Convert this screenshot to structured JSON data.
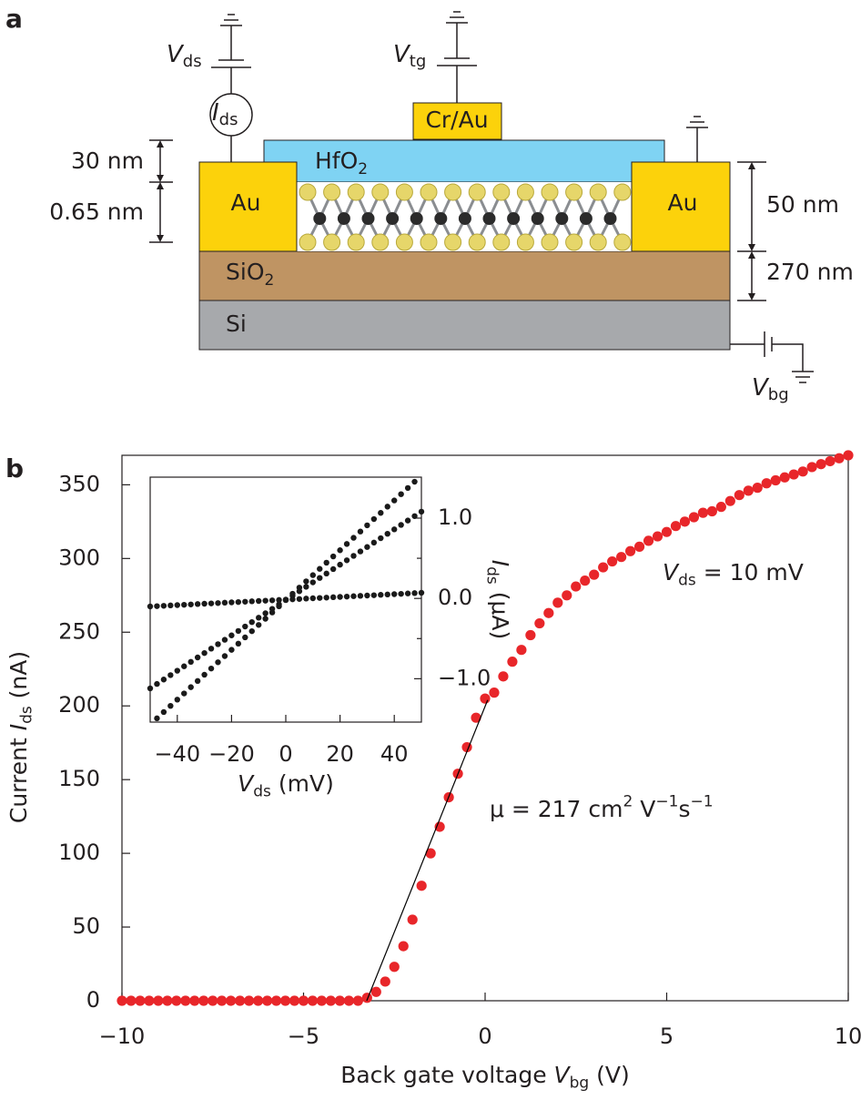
{
  "panel_a": {
    "label": "a",
    "vds": {
      "symbol": "V",
      "sub": "ds"
    },
    "ids": {
      "symbol": "I",
      "sub": "ds"
    },
    "vtg": {
      "symbol": "V",
      "sub": "tg"
    },
    "vbg": {
      "symbol": "V",
      "sub": "bg"
    },
    "layers": {
      "top_gate": "Cr/Au",
      "dielectric": {
        "text": "HfO",
        "sub": "2"
      },
      "contact_left": "Au",
      "contact_right": "Au",
      "oxide": {
        "text": "SiO",
        "sub": "2"
      },
      "substrate": "Si"
    },
    "dimensions": [
      "30 nm",
      "0.65 nm",
      "50 nm",
      "270 nm"
    ]
  },
  "chart_data": [
    {
      "type": "scatter",
      "panel_label": "b",
      "x": [
        -10,
        -9.75,
        -9.5,
        -9.25,
        -9,
        -8.75,
        -8.5,
        -8.25,
        -8,
        -7.75,
        -7.5,
        -7.25,
        -7,
        -6.75,
        -6.5,
        -6.25,
        -6,
        -5.75,
        -5.5,
        -5.25,
        -5,
        -4.75,
        -4.5,
        -4.25,
        -4,
        -3.75,
        -3.5,
        -3.25,
        -3,
        -2.75,
        -2.5,
        -2.25,
        -2,
        -1.75,
        -1.5,
        -1.25,
        -1,
        -0.75,
        -0.5,
        -0.25,
        0,
        0.25,
        0.5,
        0.75,
        1,
        1.25,
        1.5,
        1.75,
        2,
        2.25,
        2.5,
        2.75,
        3,
        3.25,
        3.5,
        3.75,
        4,
        4.25,
        4.5,
        4.75,
        5,
        5.25,
        5.5,
        5.75,
        6,
        6.25,
        6.5,
        6.75,
        7,
        7.25,
        7.5,
        7.75,
        8,
        8.25,
        8.5,
        8.75,
        9,
        9.25,
        9.5,
        9.75,
        10
      ],
      "values": [
        0,
        0,
        0,
        0,
        0,
        0,
        0,
        0,
        0,
        0,
        0,
        0,
        0,
        0,
        0,
        0,
        0,
        0,
        0,
        0,
        0,
        0,
        0,
        0,
        0,
        0,
        0,
        2,
        6,
        13,
        23,
        37,
        55,
        78,
        100,
        118,
        138,
        154,
        172,
        192,
        205,
        209,
        220,
        230,
        238,
        248,
        256,
        263,
        270,
        275,
        281,
        285,
        289,
        294,
        298,
        301,
        305,
        308,
        312,
        315,
        318,
        322,
        325,
        328,
        331,
        332,
        335,
        339,
        343,
        346,
        348,
        351,
        353,
        355,
        357,
        359,
        362,
        364,
        366,
        368,
        370
      ],
      "color": "#e8262a",
      "xlim": [
        -10,
        10
      ],
      "ylim": [
        0,
        370
      ],
      "xticks": [
        {
          "value": -10,
          "label": "−10"
        },
        {
          "value": -5,
          "label": "−5"
        },
        0,
        5,
        10
      ],
      "yticks": [
        0,
        50,
        100,
        150,
        200,
        250,
        300,
        350
      ],
      "xlabel": {
        "text": "Back gate voltage ",
        "symbol": "V",
        "sub": "bg",
        "unit": " (V)"
      },
      "ylabel": {
        "text": "Current ",
        "symbol": "I",
        "sub": "ds",
        "unit": " (nA)"
      },
      "fit_line": {
        "x": [
          -3.26,
          0.07
        ],
        "values": [
          0,
          204
        ],
        "color": "#000000"
      },
      "annotations": [
        {
          "symbol": "V",
          "sub": "ds",
          "text": " = 10 mV"
        },
        {
          "parts": [
            "μ = 217 cm",
            "2",
            " V",
            "−1",
            "s",
            "−1"
          ]
        }
      ]
    },
    {
      "type": "scatter",
      "x": [
        -50,
        -47.5,
        -45,
        -42.5,
        -40,
        -37.5,
        -35,
        -32.5,
        -30,
        -27.5,
        -25,
        -22.5,
        -20,
        -17.5,
        -15,
        -12.5,
        -10,
        -7.5,
        -5,
        -2.5,
        0,
        2.5,
        5,
        7.5,
        10,
        12.5,
        15,
        17.5,
        20,
        22.5,
        25,
        27.5,
        30,
        32.5,
        35,
        37.5,
        40,
        42.5,
        45,
        47.5,
        50
      ],
      "series": [
        {
          "color": "#1a1a1a",
          "axis": "y2",
          "values": [
            -0.1,
            -0.096,
            -0.092,
            -0.087,
            -0.083,
            -0.079,
            -0.075,
            -0.07,
            -0.066,
            -0.062,
            -0.058,
            -0.053,
            -0.049,
            -0.045,
            -0.041,
            -0.036,
            -0.032,
            -0.028,
            -0.024,
            -0.019,
            -0.015,
            -0.011,
            -0.007,
            -0.002,
            0.002,
            0.006,
            0.01,
            0.015,
            0.019,
            0.023,
            0.028,
            0.032,
            0.036,
            0.04,
            0.045,
            0.049,
            0.053,
            0.057,
            0.062,
            0.066,
            0.07
          ]
        },
        {
          "color": "#1a1a1a",
          "axis": "y2",
          "values": [
            -1.12,
            -1.065,
            -1.01,
            -0.955,
            -0.9,
            -0.845,
            -0.79,
            -0.735,
            -0.68,
            -0.625,
            -0.57,
            -0.515,
            -0.46,
            -0.405,
            -0.35,
            -0.295,
            -0.24,
            -0.185,
            -0.13,
            -0.075,
            -0.02,
            0.035,
            0.09,
            0.145,
            0.2,
            0.255,
            0.31,
            0.365,
            0.42,
            0.475,
            0.53,
            0.585,
            0.64,
            0.695,
            0.75,
            0.805,
            0.86,
            0.915,
            0.97,
            1.025,
            1.08
          ]
        },
        {
          "color": "#1a1a1a",
          "axis": "y2",
          "values": [
            null,
            -1.493,
            -1.415,
            -1.338,
            -1.26,
            -1.183,
            -1.105,
            -1.028,
            -0.95,
            -0.873,
            -0.795,
            -0.718,
            -0.64,
            -0.563,
            -0.485,
            -0.408,
            -0.33,
            -0.253,
            -0.175,
            -0.098,
            -0.02,
            0.058,
            0.135,
            0.213,
            0.29,
            0.368,
            0.445,
            0.523,
            0.6,
            0.678,
            0.755,
            0.833,
            0.91,
            0.988,
            1.065,
            1.143,
            1.22,
            1.298,
            1.375,
            1.453,
            null
          ]
        }
      ],
      "xlim": [
        -50,
        50
      ],
      "y2lim": [
        -1.54,
        1.51
      ],
      "xticks": [
        {
          "value": -40,
          "label": "−40"
        },
        {
          "value": -20,
          "label": "−20"
        },
        0,
        20,
        40
      ],
      "y2ticks": [
        {
          "value": 1,
          "label": "1.0"
        },
        {
          "value": 0,
          "label": "0.0"
        },
        {
          "value": -1,
          "label": "−1.0"
        }
      ],
      "y2ticks_minor": [
        0.5,
        -0.5
      ],
      "xlabel": {
        "symbol": "V",
        "sub": "ds",
        "unit": " (mV)"
      },
      "y2label": {
        "symbol": "I",
        "sub": "ds",
        "unit": " (μA)"
      }
    }
  ]
}
